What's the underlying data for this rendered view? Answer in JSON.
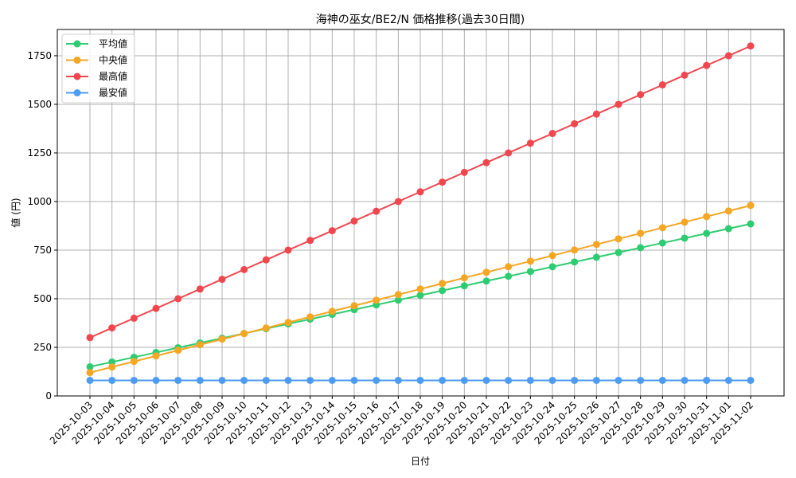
{
  "chart_data": {
    "type": "line",
    "title": "海神の巫女/BE2/N 価格推移(過去30日間)",
    "xlabel": "日付",
    "ylabel": "値 (円)",
    "ylim": [
      0,
      1885
    ],
    "yticks": [
      0,
      250,
      500,
      750,
      1000,
      1250,
      1500,
      1750
    ],
    "grid": true,
    "legend_position": "upper left",
    "x": [
      "2025-10-03",
      "2025-10-04",
      "2025-10-05",
      "2025-10-06",
      "2025-10-07",
      "2025-10-08",
      "2025-10-09",
      "2025-10-10",
      "2025-10-11",
      "2025-10-12",
      "2025-10-13",
      "2025-10-14",
      "2025-10-15",
      "2025-10-16",
      "2025-10-17",
      "2025-10-18",
      "2025-10-19",
      "2025-10-20",
      "2025-10-21",
      "2025-10-22",
      "2025-10-23",
      "2025-10-24",
      "2025-10-25",
      "2025-10-26",
      "2025-10-27",
      "2025-10-28",
      "2025-10-29",
      "2025-10-30",
      "2025-10-31",
      "2025-11-01",
      "2025-11-02"
    ],
    "series": [
      {
        "name": "平均値",
        "color": "#2ecc71",
        "values": [
          150,
          174.5,
          199,
          223.5,
          248,
          272.5,
          297,
          321.5,
          346,
          370.5,
          395,
          419.5,
          444,
          468.5,
          493,
          517.5,
          542,
          566.5,
          591,
          615.5,
          640,
          664.5,
          689,
          713.5,
          738,
          762.5,
          787,
          811.5,
          836,
          860.5,
          885
        ]
      },
      {
        "name": "中央値",
        "color": "#f5a623",
        "values": [
          120,
          148.7,
          177.3,
          206,
          234.7,
          263.3,
          292,
          320.7,
          349.3,
          378,
          406.7,
          435.3,
          464,
          492.7,
          521.3,
          550,
          578.7,
          607.3,
          636,
          664.7,
          693.3,
          722,
          750.7,
          779.3,
          808,
          836.7,
          865.3,
          894,
          922.7,
          951.3,
          980
        ]
      },
      {
        "name": "最高値",
        "color": "#f0474f",
        "values": [
          300,
          350,
          400,
          450,
          500,
          550,
          600,
          650,
          700,
          750,
          800,
          850,
          900,
          950,
          1000,
          1050,
          1100,
          1150,
          1200,
          1250,
          1300,
          1350,
          1400,
          1450,
          1500,
          1550,
          1600,
          1650,
          1700,
          1750,
          1800
        ]
      },
      {
        "name": "最安値",
        "color": "#4c9bf5",
        "values": [
          80,
          80,
          80,
          80,
          80,
          80,
          80,
          80,
          80,
          80,
          80,
          80,
          80,
          80,
          80,
          80,
          80,
          80,
          80,
          80,
          80,
          80,
          80,
          80,
          80,
          80,
          80,
          80,
          80,
          80,
          80
        ]
      }
    ]
  }
}
